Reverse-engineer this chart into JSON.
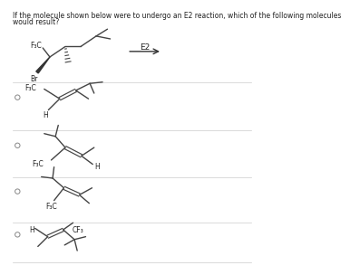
{
  "title_line1": "If the molecule shown below were to undergo an E2 reaction, which of the following molecules",
  "title_line2": "would result?",
  "text_color": "#222222",
  "line_color": "#444444",
  "separator_color": "#cccccc",
  "radio_color": "#888888",
  "arrow_color": "#333333"
}
